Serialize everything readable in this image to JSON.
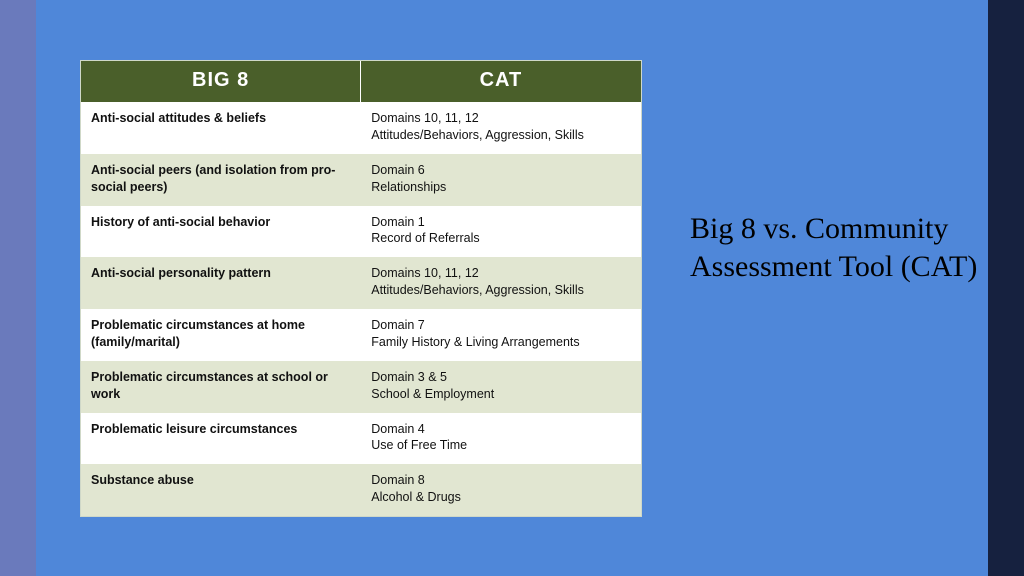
{
  "slide": {
    "background_color": "#4f87d9",
    "left_strip_color": "#6a7abc",
    "right_strip_color": "#16213f",
    "title": "Big 8 vs. Community Assessment Tool (CAT)",
    "title_fontsize": 30,
    "title_font_family": "Georgia, serif",
    "title_color": "#000000"
  },
  "table": {
    "type": "table",
    "header_bg": "#4a5f2a",
    "header_color": "#ffffff",
    "row_even_bg": "#ffffff",
    "row_odd_bg": "#e1e6d1",
    "columns": [
      "BIG 8",
      "CAT"
    ],
    "rows": [
      {
        "big8": "Anti-social attitudes & beliefs",
        "cat_line1": "Domains 10, 11, 12",
        "cat_line2": "Attitudes/Behaviors, Aggression, Skills"
      },
      {
        "big8": "Anti-social peers (and isolation from pro-social peers)",
        "cat_line1": "Domain 6",
        "cat_line2": "Relationships"
      },
      {
        "big8": "History of anti-social behavior",
        "cat_line1": "Domain 1",
        "cat_line2": "Record of Referrals"
      },
      {
        "big8": "Anti-social personality pattern",
        "cat_line1": "Domains 10, 11, 12",
        "cat_line2": "Attitudes/Behaviors, Aggression, Skills"
      },
      {
        "big8": "Problematic circumstances at home (family/marital)",
        "cat_line1": "Domain 7",
        "cat_line2": "Family History & Living Arrangements"
      },
      {
        "big8": "Problematic circumstances at school or work",
        "cat_line1": "Domain 3 & 5",
        "cat_line2": "School & Employment"
      },
      {
        "big8": "Problematic leisure circumstances",
        "cat_line1": "Domain 4",
        "cat_line2": "Use of Free Time"
      },
      {
        "big8": "Substance abuse",
        "cat_line1": "Domain 8",
        "cat_line2": "Alcohol & Drugs"
      }
    ]
  }
}
